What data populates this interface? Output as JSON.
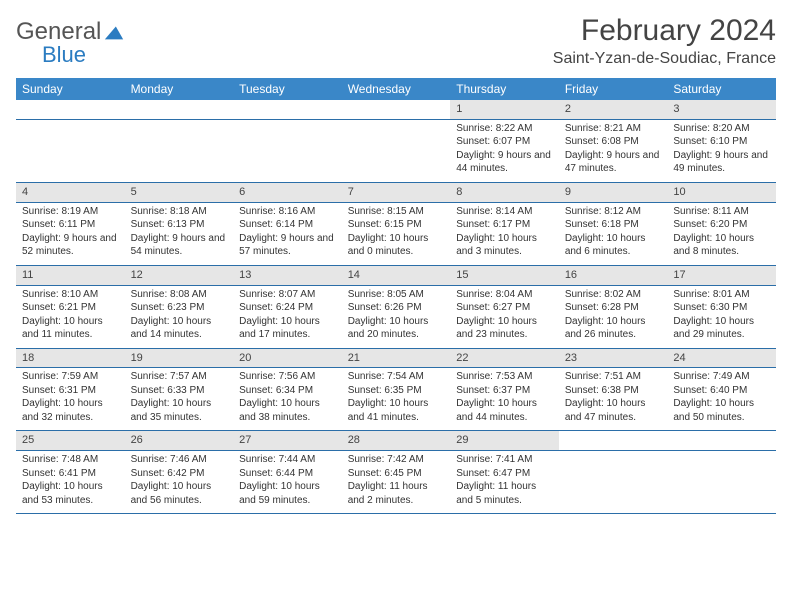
{
  "logo": {
    "line1": "General",
    "line2": "Blue"
  },
  "title": {
    "month": "February 2024",
    "location": "Saint-Yzan-de-Soudiac, France"
  },
  "colors": {
    "header_bg": "#3a87c8",
    "daynum_bg": "#e6e6e6",
    "rule": "#2b6ea8"
  },
  "weekdays": [
    "Sunday",
    "Monday",
    "Tuesday",
    "Wednesday",
    "Thursday",
    "Friday",
    "Saturday"
  ],
  "weeks": [
    {
      "days": [
        null,
        null,
        null,
        null,
        {
          "n": "1",
          "sunrise": "8:22 AM",
          "sunset": "6:07 PM",
          "daylight": "9 hours and 44 minutes."
        },
        {
          "n": "2",
          "sunrise": "8:21 AM",
          "sunset": "6:08 PM",
          "daylight": "9 hours and 47 minutes."
        },
        {
          "n": "3",
          "sunrise": "8:20 AM",
          "sunset": "6:10 PM",
          "daylight": "9 hours and 49 minutes."
        }
      ]
    },
    {
      "days": [
        {
          "n": "4",
          "sunrise": "8:19 AM",
          "sunset": "6:11 PM",
          "daylight": "9 hours and 52 minutes."
        },
        {
          "n": "5",
          "sunrise": "8:18 AM",
          "sunset": "6:13 PM",
          "daylight": "9 hours and 54 minutes."
        },
        {
          "n": "6",
          "sunrise": "8:16 AM",
          "sunset": "6:14 PM",
          "daylight": "9 hours and 57 minutes."
        },
        {
          "n": "7",
          "sunrise": "8:15 AM",
          "sunset": "6:15 PM",
          "daylight": "10 hours and 0 minutes."
        },
        {
          "n": "8",
          "sunrise": "8:14 AM",
          "sunset": "6:17 PM",
          "daylight": "10 hours and 3 minutes."
        },
        {
          "n": "9",
          "sunrise": "8:12 AM",
          "sunset": "6:18 PM",
          "daylight": "10 hours and 6 minutes."
        },
        {
          "n": "10",
          "sunrise": "8:11 AM",
          "sunset": "6:20 PM",
          "daylight": "10 hours and 8 minutes."
        }
      ]
    },
    {
      "days": [
        {
          "n": "11",
          "sunrise": "8:10 AM",
          "sunset": "6:21 PM",
          "daylight": "10 hours and 11 minutes."
        },
        {
          "n": "12",
          "sunrise": "8:08 AM",
          "sunset": "6:23 PM",
          "daylight": "10 hours and 14 minutes."
        },
        {
          "n": "13",
          "sunrise": "8:07 AM",
          "sunset": "6:24 PM",
          "daylight": "10 hours and 17 minutes."
        },
        {
          "n": "14",
          "sunrise": "8:05 AM",
          "sunset": "6:26 PM",
          "daylight": "10 hours and 20 minutes."
        },
        {
          "n": "15",
          "sunrise": "8:04 AM",
          "sunset": "6:27 PM",
          "daylight": "10 hours and 23 minutes."
        },
        {
          "n": "16",
          "sunrise": "8:02 AM",
          "sunset": "6:28 PM",
          "daylight": "10 hours and 26 minutes."
        },
        {
          "n": "17",
          "sunrise": "8:01 AM",
          "sunset": "6:30 PM",
          "daylight": "10 hours and 29 minutes."
        }
      ]
    },
    {
      "days": [
        {
          "n": "18",
          "sunrise": "7:59 AM",
          "sunset": "6:31 PM",
          "daylight": "10 hours and 32 minutes."
        },
        {
          "n": "19",
          "sunrise": "7:57 AM",
          "sunset": "6:33 PM",
          "daylight": "10 hours and 35 minutes."
        },
        {
          "n": "20",
          "sunrise": "7:56 AM",
          "sunset": "6:34 PM",
          "daylight": "10 hours and 38 minutes."
        },
        {
          "n": "21",
          "sunrise": "7:54 AM",
          "sunset": "6:35 PM",
          "daylight": "10 hours and 41 minutes."
        },
        {
          "n": "22",
          "sunrise": "7:53 AM",
          "sunset": "6:37 PM",
          "daylight": "10 hours and 44 minutes."
        },
        {
          "n": "23",
          "sunrise": "7:51 AM",
          "sunset": "6:38 PM",
          "daylight": "10 hours and 47 minutes."
        },
        {
          "n": "24",
          "sunrise": "7:49 AM",
          "sunset": "6:40 PM",
          "daylight": "10 hours and 50 minutes."
        }
      ]
    },
    {
      "days": [
        {
          "n": "25",
          "sunrise": "7:48 AM",
          "sunset": "6:41 PM",
          "daylight": "10 hours and 53 minutes."
        },
        {
          "n": "26",
          "sunrise": "7:46 AM",
          "sunset": "6:42 PM",
          "daylight": "10 hours and 56 minutes."
        },
        {
          "n": "27",
          "sunrise": "7:44 AM",
          "sunset": "6:44 PM",
          "daylight": "10 hours and 59 minutes."
        },
        {
          "n": "28",
          "sunrise": "7:42 AM",
          "sunset": "6:45 PM",
          "daylight": "11 hours and 2 minutes."
        },
        {
          "n": "29",
          "sunrise": "7:41 AM",
          "sunset": "6:47 PM",
          "daylight": "11 hours and 5 minutes."
        },
        null,
        null
      ]
    }
  ],
  "labels": {
    "sunrise": "Sunrise:",
    "sunset": "Sunset:",
    "daylight": "Daylight:"
  }
}
